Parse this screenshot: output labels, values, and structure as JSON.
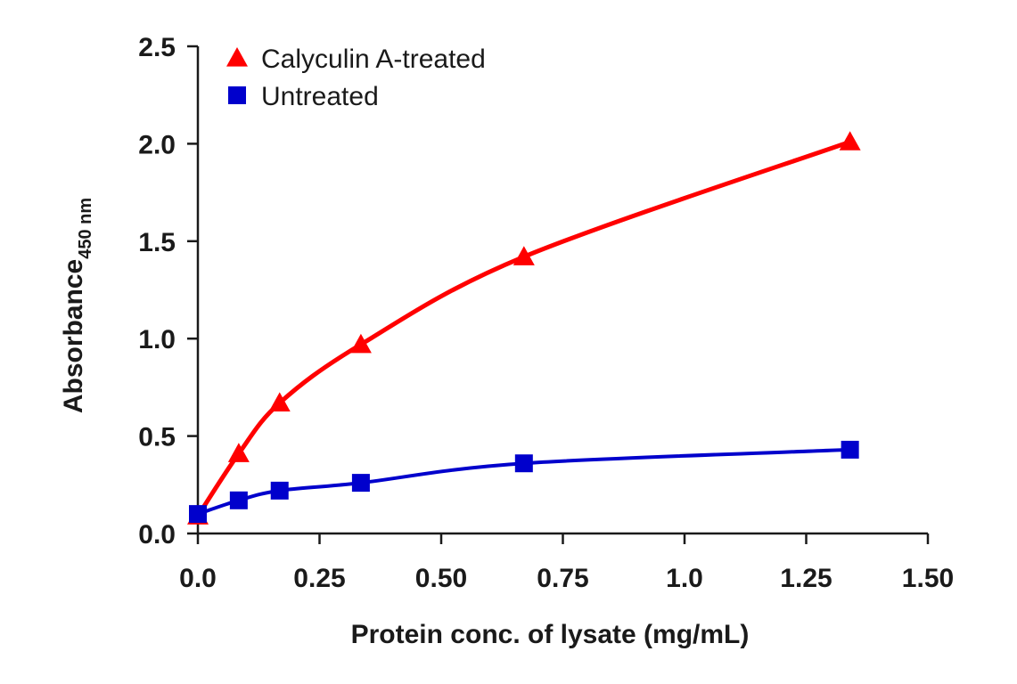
{
  "chart_data": {
    "type": "line",
    "title": "",
    "xlabel": "Protein conc. of lysate (mg/mL)",
    "ylabel": {
      "main": "Absorbance",
      "subscript": "450 nm"
    },
    "xlim": [
      0,
      1.5
    ],
    "ylim": [
      0,
      2.5
    ],
    "x_ticks": [
      0,
      0.25,
      0.5,
      0.75,
      1.0,
      1.25,
      1.5
    ],
    "x_tick_labels": [
      "0.0",
      "0.25",
      "0.50",
      "0.75",
      "1.0",
      "1.25",
      "1.50"
    ],
    "y_ticks": [
      0,
      0.5,
      1.0,
      1.5,
      2.0,
      2.5
    ],
    "y_tick_labels": [
      "0.0",
      "0.5",
      "1.0",
      "1.5",
      "2.0",
      "2.5"
    ],
    "grid": false,
    "legend_position": "top-left",
    "series": [
      {
        "name": "Calyculin A-treated",
        "marker": "triangle",
        "color": "#ff0000",
        "x": [
          0,
          0.084,
          0.168,
          0.335,
          0.67,
          1.34
        ],
        "y": [
          0.09,
          0.41,
          0.67,
          0.97,
          1.42,
          2.01
        ]
      },
      {
        "name": "Untreated",
        "marker": "square",
        "color": "#0000cc",
        "x": [
          0,
          0.084,
          0.168,
          0.335,
          0.67,
          1.34
        ],
        "y": [
          0.1,
          0.17,
          0.22,
          0.26,
          0.36,
          0.43
        ]
      }
    ]
  }
}
